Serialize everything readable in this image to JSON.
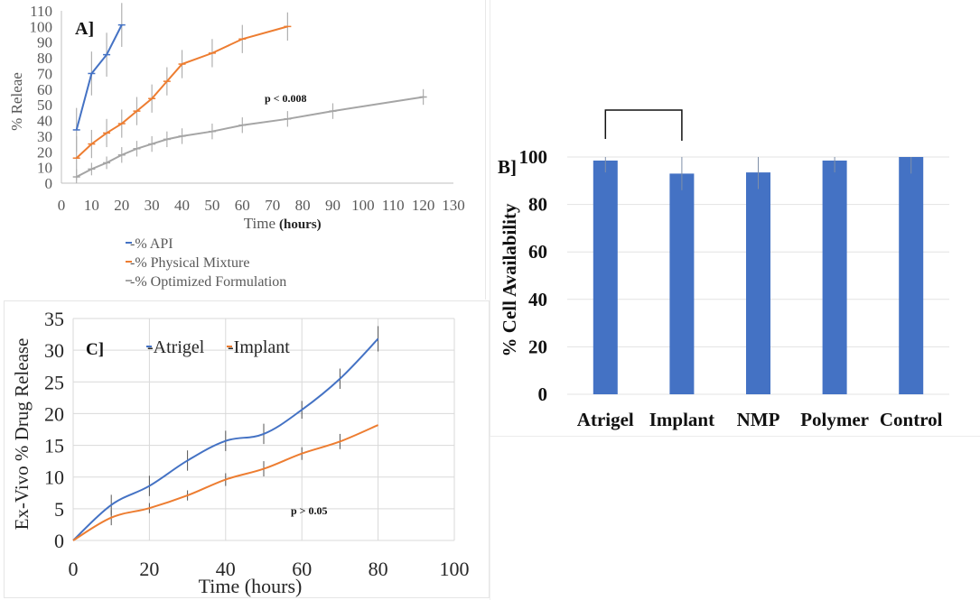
{
  "chart_data": [
    {
      "id": "A",
      "type": "line",
      "panel_label": "A]",
      "title": "",
      "xlabel": "Time",
      "xlabel_bold": "(hours)",
      "ylabel": "%  Releae",
      "xlim": [
        0,
        130
      ],
      "ylim": [
        0,
        110
      ],
      "xticks": [
        0,
        10,
        20,
        30,
        40,
        50,
        60,
        70,
        80,
        90,
        100,
        110,
        120,
        130
      ],
      "yticks": [
        0,
        10,
        20,
        30,
        40,
        50,
        60,
        70,
        80,
        90,
        100,
        110
      ],
      "grid": false,
      "legend_position": "bottom",
      "series": [
        {
          "name": "-% API",
          "color": "#4472c4",
          "x": [
            5,
            10,
            15,
            20
          ],
          "y": [
            34,
            70,
            82,
            101
          ],
          "err": [
            14,
            14,
            14,
            14
          ]
        },
        {
          "name": "-% Physical Mixture",
          "color": "#ed7d31",
          "x": [
            5,
            10,
            15,
            20,
            25,
            30,
            35,
            40,
            50,
            60,
            75
          ],
          "y": [
            16,
            25,
            32,
            38,
            46,
            54,
            65,
            76,
            83,
            92,
            100
          ],
          "err": [
            14,
            9,
            9,
            9,
            9,
            9,
            9,
            9,
            9,
            9,
            9
          ]
        },
        {
          "name": "-% Optimized Formulation",
          "color": "#a5a5a5",
          "x": [
            5,
            10,
            15,
            20,
            25,
            30,
            35,
            40,
            50,
            60,
            75,
            90,
            120
          ],
          "y": [
            4,
            9,
            13,
            18,
            22,
            25,
            28,
            30,
            33,
            37,
            41,
            46,
            55
          ],
          "err": [
            5,
            4,
            4,
            5,
            5,
            5,
            5,
            5,
            5,
            5,
            5,
            5,
            5
          ]
        }
      ]
    },
    {
      "id": "B",
      "type": "bar",
      "panel_label": "B]",
      "title": "",
      "xlabel": "",
      "ylabel": "% Cell Availability",
      "categories": [
        "Atrigel",
        "Implant",
        "NMP",
        "Polymer",
        "Control"
      ],
      "values": [
        98.5,
        93,
        93.5,
        98.5,
        100
      ],
      "err": [
        5,
        7,
        7,
        5,
        7
      ],
      "color": "#4472c4",
      "ylim": [
        0,
        100
      ],
      "yticks": [
        0,
        20,
        40,
        60,
        80,
        100
      ],
      "grid": true,
      "annotation": {
        "text": "p < 0.008",
        "from": "Atrigel",
        "to": "Implant"
      }
    },
    {
      "id": "C",
      "type": "line",
      "panel_label": "C]",
      "title": "",
      "xlabel": "Time (hours)",
      "ylabel": "Ex-Vivo % Drug Release",
      "xlim": [
        0,
        100
      ],
      "ylim": [
        0,
        35
      ],
      "xticks": [
        0,
        20,
        40,
        60,
        80,
        100
      ],
      "yticks": [
        0,
        5,
        10,
        15,
        20,
        25,
        30,
        35
      ],
      "grid": true,
      "legend_position": "top-left",
      "annotation": {
        "text": "p > 0.05"
      },
      "series": [
        {
          "name": "-Atrigel",
          "color": "#4472c4",
          "x": [
            0,
            10,
            20,
            30,
            40,
            50,
            60,
            70,
            80
          ],
          "y": [
            0,
            5.6,
            8.6,
            12.6,
            15.7,
            16.8,
            20.6,
            25.5,
            31.8
          ],
          "err": [
            0,
            1.6,
            1.6,
            1.6,
            1.6,
            1.6,
            1.4,
            1.6,
            2.0
          ]
        },
        {
          "name": "-Implant",
          "color": "#ed7d31",
          "x": [
            0,
            10,
            20,
            30,
            40,
            50,
            60,
            70,
            80
          ],
          "y": [
            0,
            3.6,
            5.1,
            7.1,
            9.6,
            11.3,
            13.7,
            15.6,
            18.2
          ],
          "err": [
            0,
            1.2,
            0.8,
            0.8,
            1.0,
            1.2,
            1.0,
            1.2,
            0
          ]
        }
      ]
    }
  ]
}
